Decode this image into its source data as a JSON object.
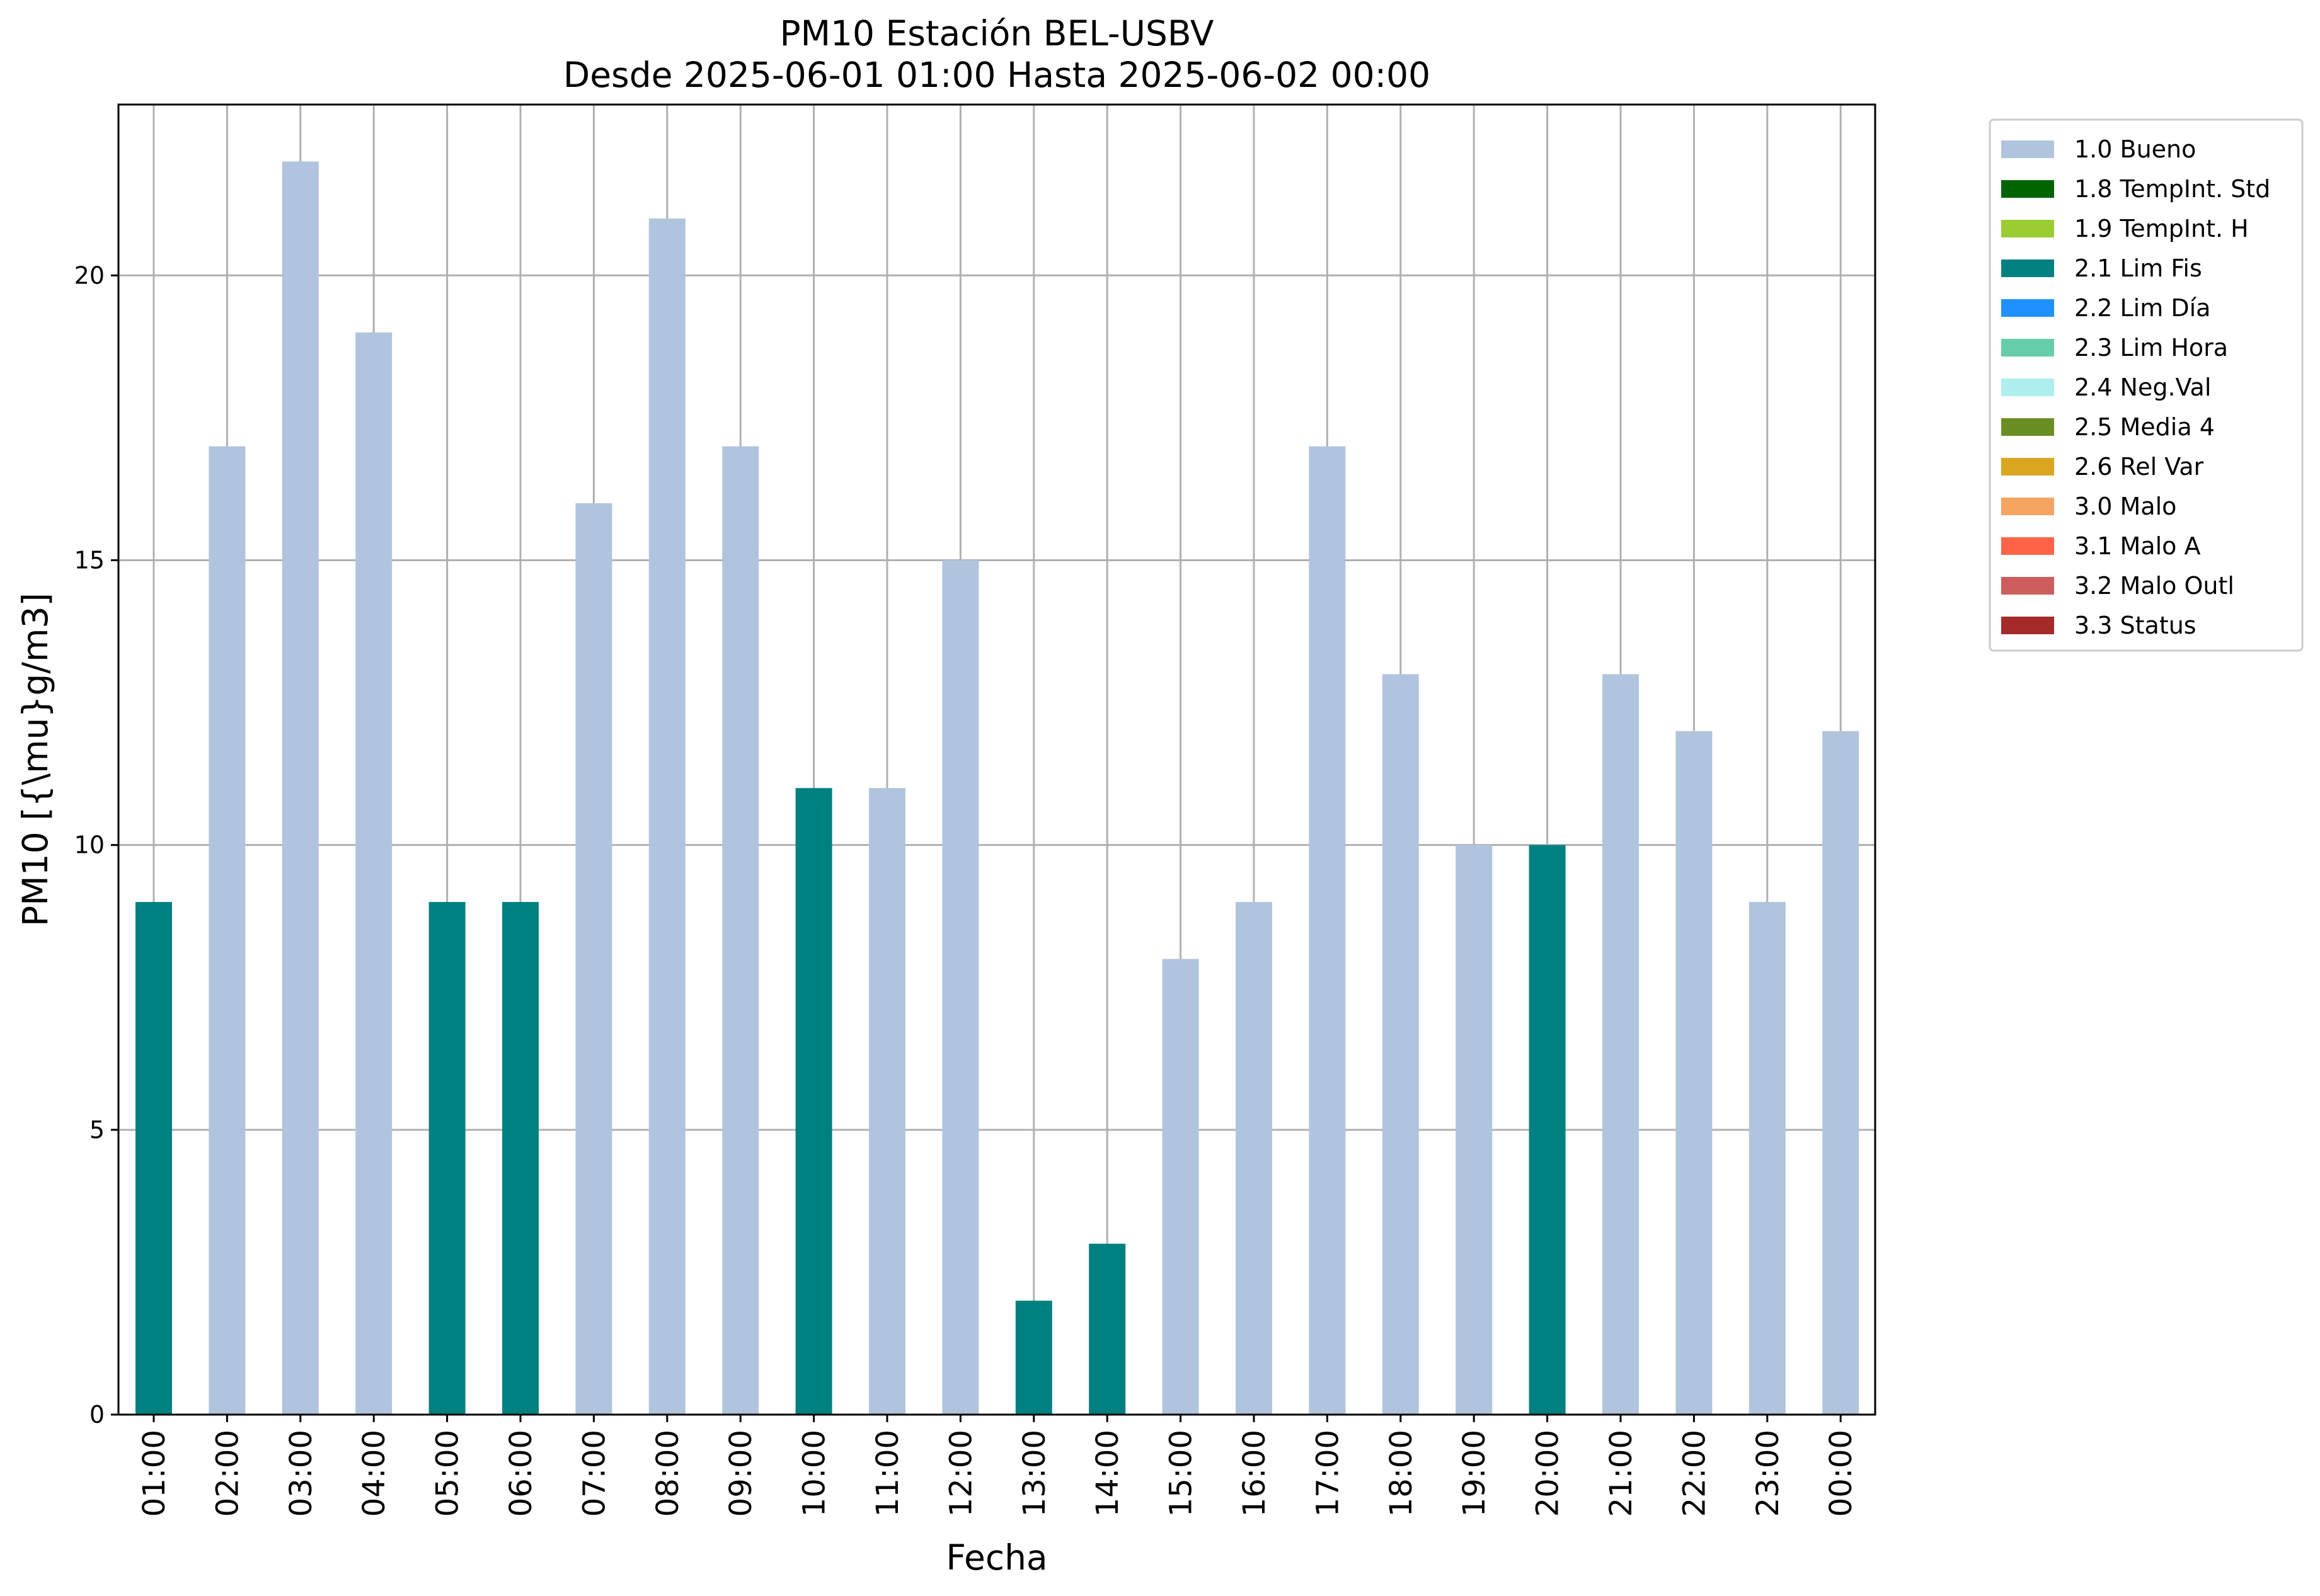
{
  "chart_data": {
    "type": "bar",
    "title": "PM10 Estación BEL-USBV",
    "subtitle": "Desde 2025-06-01 01:00 Hasta 2025-06-02 00:00",
    "xlabel": "Fecha",
    "ylabel": "PM10 [{\\mu}g/m3]",
    "ylim": [
      0,
      23
    ],
    "yticks": [
      0,
      5,
      10,
      15,
      20
    ],
    "grid": true,
    "legend_position": "outside-top-right",
    "categories": [
      "01:00",
      "02:00",
      "03:00",
      "04:00",
      "05:00",
      "06:00",
      "07:00",
      "08:00",
      "09:00",
      "10:00",
      "11:00",
      "12:00",
      "13:00",
      "14:00",
      "15:00",
      "16:00",
      "17:00",
      "18:00",
      "19:00",
      "20:00",
      "21:00",
      "22:00",
      "23:00",
      "00:00"
    ],
    "values": [
      9,
      17,
      22,
      19,
      9,
      9,
      16,
      21,
      17,
      11,
      11,
      15,
      2,
      3,
      8,
      9,
      17,
      13,
      10,
      10,
      13,
      12,
      9,
      12
    ],
    "flags": [
      "2.1 Lim Fis",
      "1.0 Bueno",
      "1.0 Bueno",
      "1.0 Bueno",
      "2.1 Lim Fis",
      "2.1 Lim Fis",
      "1.0 Bueno",
      "1.0 Bueno",
      "1.0 Bueno",
      "2.1 Lim Fis",
      "1.0 Bueno",
      "1.0 Bueno",
      "2.1 Lim Fis",
      "2.1 Lim Fis",
      "1.0 Bueno",
      "1.0 Bueno",
      "1.0 Bueno",
      "1.0 Bueno",
      "1.0 Bueno",
      "2.1 Lim Fis",
      "1.0 Bueno",
      "1.0 Bueno",
      "1.0 Bueno",
      "1.0 Bueno"
    ],
    "legend": [
      {
        "label": "1.0 Bueno",
        "color": "#b0c4de"
      },
      {
        "label": "1.8 TempInt. Std",
        "color": "#006400"
      },
      {
        "label": "1.9 TempInt. H",
        "color": "#9acd32"
      },
      {
        "label": "2.1 Lim Fis",
        "color": "#008080"
      },
      {
        "label": "2.2 Lim Día",
        "color": "#1e90ff"
      },
      {
        "label": "2.3 Lim Hora",
        "color": "#66cdaa"
      },
      {
        "label": "2.4 Neg.Val",
        "color": "#afeeee"
      },
      {
        "label": "2.5 Media 4",
        "color": "#6b8e23"
      },
      {
        "label": "2.6 Rel Var",
        "color": "#daa520"
      },
      {
        "label": "3.0 Malo",
        "color": "#f4a460"
      },
      {
        "label": "3.1 Malo A",
        "color": "#ff6347"
      },
      {
        "label": "3.2 Malo Outl",
        "color": "#cd5c5c"
      },
      {
        "label": "3.3 Status",
        "color": "#a52a2a"
      }
    ]
  }
}
